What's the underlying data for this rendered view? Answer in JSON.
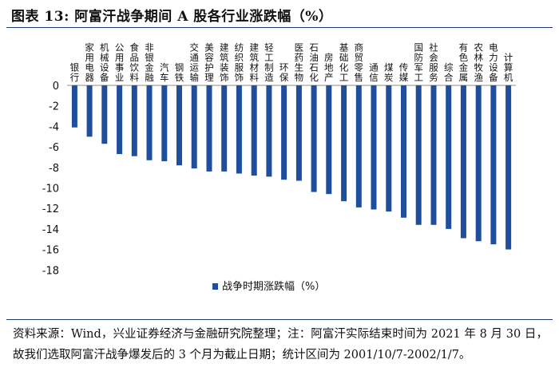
{
  "title": "图表 13:  阿富汗战争期间 A 股各行业涨跌幅（%）",
  "source_note": "资料来源：Wind，兴业证券经济与金融研究院整理；注：阿富汗实际结束时间为 2021 年 8 月 30 日，故我们选取阿富汗战争爆发后的 3 个月为截止日期；统计区间为 2001/10/7-2002/1/7。",
  "chart_data": {
    "type": "bar",
    "title": "阿富汗战争期间 A 股各行业涨跌幅（%）",
    "xlabel": "",
    "ylabel": "",
    "ylim": [
      -18,
      0
    ],
    "yticks": [
      0,
      -2,
      -4,
      -6,
      -8,
      -10,
      -12,
      -14,
      -16,
      -18
    ],
    "legend": {
      "label": "战争时期涨跌幅（%）",
      "position": "bottom-center"
    },
    "bar_color": "#1f4e9c",
    "categories": [
      "银行",
      "家用电器",
      "机械设备",
      "公用事业",
      "食品饮料",
      "非银金融",
      "汽车",
      "钢铁",
      "交通运输",
      "美容护理",
      "建筑装饰",
      "纺织服饰",
      "建筑材料",
      "轻工制造",
      "环保",
      "医药生物",
      "石油石化",
      "房地产",
      "基础化工",
      "商贸零售",
      "通信",
      "煤炭",
      "传媒",
      "国防军工",
      "社会服务",
      "综合",
      "有色金属",
      "农林牧渔",
      "电力设备",
      "计算机"
    ],
    "values": [
      -4.1,
      -5.0,
      -5.7,
      -6.7,
      -6.9,
      -7.3,
      -7.4,
      -7.8,
      -8.1,
      -8.4,
      -8.4,
      -8.6,
      -8.8,
      -8.9,
      -9.2,
      -9.3,
      -10.4,
      -10.6,
      -11.3,
      -11.9,
      -12.1,
      -12.3,
      -12.9,
      -13.6,
      -13.6,
      -14.0,
      -14.9,
      -15.2,
      -15.5,
      -16.0
    ]
  }
}
